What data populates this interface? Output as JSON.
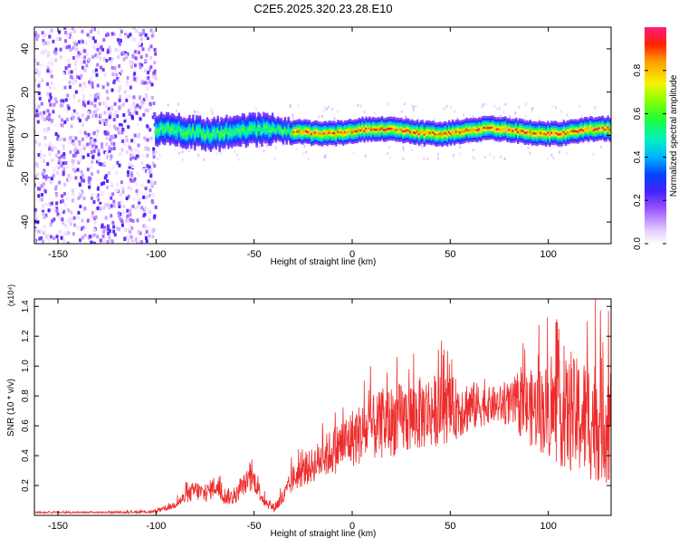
{
  "figure_title": "C2E5.2025.320.23.28.E10",
  "chart_data": [
    {
      "type": "heatmap",
      "title": "C2E5.2025.320.23.28.E10",
      "xlabel": "Height of straight line (km)",
      "ylabel": "Frequency (Hz)",
      "xlim": [
        -162,
        132
      ],
      "ylim": [
        -50,
        50
      ],
      "x_ticks": [
        -150,
        -100,
        -50,
        0,
        50,
        100
      ],
      "y_ticks": [
        -40,
        -20,
        0,
        20,
        40
      ],
      "x_tick_labels": [
        "-150",
        "-100",
        "-50",
        "0",
        "50",
        "100"
      ],
      "y_tick_labels": [
        "-40",
        "-20",
        "0",
        "20",
        "40"
      ],
      "colorbar": {
        "label": "Normalized spectral amplitude",
        "range": [
          0,
          1
        ],
        "ticks": [
          0.0,
          0.2,
          0.4,
          0.6,
          0.8
        ],
        "tick_labels": [
          "0.0",
          "0.2",
          "0.4",
          "0.6",
          "0.8"
        ],
        "colormap": "rainbow"
      },
      "regions": [
        {
          "name": "diffuse scatter",
          "x_range": [
            -162,
            -100
          ],
          "y_range": [
            -50,
            50
          ],
          "amplitude": [
            0.02,
            0.25
          ]
        },
        {
          "name": "spectral band",
          "x_range": [
            -100,
            132
          ],
          "center_hz": 2,
          "half_width_hz": 5,
          "peak_amplitude": [
            0.5,
            1.0
          ]
        }
      ]
    },
    {
      "type": "line",
      "xlabel": "Height of straight line (km)",
      "ylabel": "SNR (10 * v/v)",
      "y_scale_label": "(x10⁴)",
      "xlim": [
        -162,
        132
      ],
      "ylim": [
        0,
        1.45
      ],
      "x_ticks": [
        -150,
        -100,
        -50,
        0,
        50,
        100
      ],
      "y_ticks": [
        0.2,
        0.4,
        0.6,
        0.8,
        1.0,
        1.2,
        1.4
      ],
      "x_tick_labels": [
        "-150",
        "-100",
        "-50",
        "0",
        "50",
        "100"
      ],
      "y_tick_labels": [
        "0.2",
        "0.4",
        "0.6",
        "0.8",
        "1.0",
        "1.2",
        "1.4"
      ],
      "series": [
        {
          "name": "SNR",
          "color": "#ee2b2b",
          "envelope_x": [
            -162,
            -120,
            -100,
            -92,
            -85,
            -80,
            -75,
            -70,
            -65,
            -60,
            -55,
            -50,
            -45,
            -40,
            -35,
            -30,
            -25,
            -20,
            -10,
            0,
            10,
            20,
            30,
            40,
            50,
            60,
            70,
            80,
            90,
            100,
            110,
            120,
            132
          ],
          "envelope_mean": [
            0.02,
            0.02,
            0.025,
            0.06,
            0.12,
            0.17,
            0.14,
            0.2,
            0.13,
            0.12,
            0.21,
            0.24,
            0.1,
            0.05,
            0.12,
            0.25,
            0.29,
            0.34,
            0.43,
            0.52,
            0.58,
            0.63,
            0.66,
            0.7,
            0.71,
            0.73,
            0.74,
            0.74,
            0.72,
            0.7,
            0.67,
            0.65,
            0.63
          ],
          "envelope_amplitude": [
            0.005,
            0.006,
            0.01,
            0.02,
            0.05,
            0.07,
            0.06,
            0.07,
            0.06,
            0.05,
            0.07,
            0.08,
            0.04,
            0.03,
            0.06,
            0.09,
            0.1,
            0.12,
            0.16,
            0.2,
            0.22,
            0.24,
            0.25,
            0.25,
            0.22,
            0.18,
            0.12,
            0.14,
            0.25,
            0.32,
            0.38,
            0.42,
            0.42
          ]
        }
      ]
    }
  ]
}
